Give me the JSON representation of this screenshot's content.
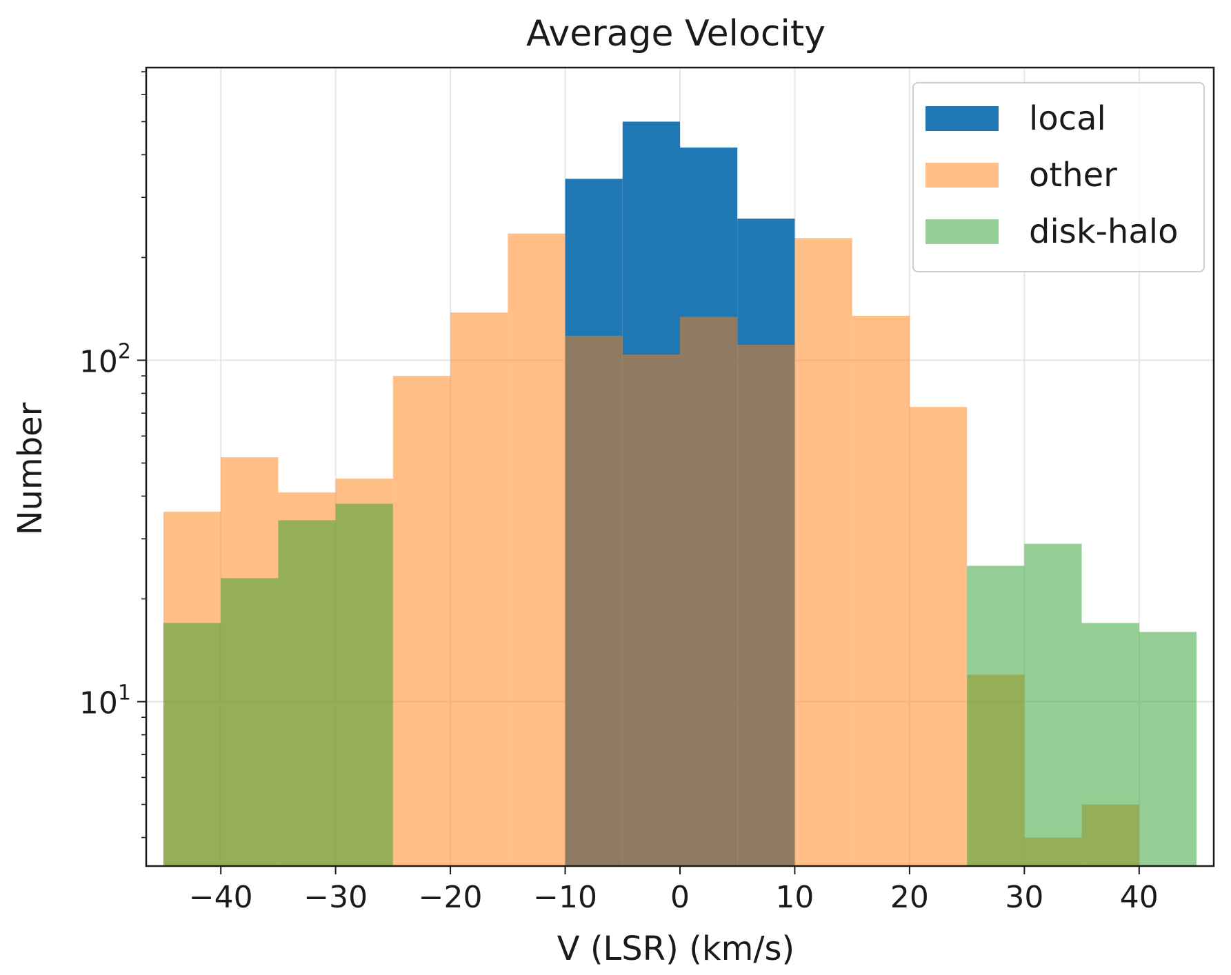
{
  "chart_data": {
    "type": "bar",
    "title": "Average Velocity",
    "xlabel": "V (LSR) (km/s)",
    "ylabel": "Number",
    "yscale": "log",
    "xlim": [
      -46.5,
      46.5
    ],
    "ylim": [
      3.3,
      720
    ],
    "grid": true,
    "legend_position": "top-right",
    "bin_width": 5,
    "x_ticks": [
      -40,
      -30,
      -20,
      -10,
      0,
      10,
      20,
      30,
      40
    ],
    "x_tick_labels": [
      "−40",
      "−30",
      "−20",
      "−10",
      "0",
      "10",
      "20",
      "30",
      "40"
    ],
    "y_major_ticks": [
      10,
      100
    ],
    "y_tick_labels": [
      {
        "base": "10",
        "exp": "1"
      },
      {
        "base": "10",
        "exp": "2"
      }
    ],
    "series": [
      {
        "name": "local",
        "color": "#1f77b4",
        "opacity": 1.0,
        "bins": [
          {
            "left": -10,
            "value": 340
          },
          {
            "left": -5,
            "value": 500
          },
          {
            "left": 0,
            "value": 420
          },
          {
            "left": 5,
            "value": 260
          }
        ]
      },
      {
        "name": "other",
        "color": "#ff7f0e",
        "opacity": 0.5,
        "bins": [
          {
            "left": -45,
            "value": 36
          },
          {
            "left": -40,
            "value": 52
          },
          {
            "left": -35,
            "value": 41
          },
          {
            "left": -30,
            "value": 45
          },
          {
            "left": -25,
            "value": 90
          },
          {
            "left": -20,
            "value": 138
          },
          {
            "left": -15,
            "value": 235
          },
          {
            "left": -10,
            "value": 118
          },
          {
            "left": -5,
            "value": 104
          },
          {
            "left": 0,
            "value": 134
          },
          {
            "left": 5,
            "value": 111
          },
          {
            "left": 10,
            "value": 228
          },
          {
            "left": 15,
            "value": 135
          },
          {
            "left": 20,
            "value": 73
          },
          {
            "left": 25,
            "value": 12
          },
          {
            "left": 30,
            "value": 4
          },
          {
            "left": 35,
            "value": 5
          }
        ]
      },
      {
        "name": "disk-halo",
        "color": "#2ca02c",
        "opacity": 0.5,
        "bins": [
          {
            "left": -45,
            "value": 17
          },
          {
            "left": -40,
            "value": 23
          },
          {
            "left": -35,
            "value": 34
          },
          {
            "left": -30,
            "value": 38
          },
          {
            "left": 25,
            "value": 25
          },
          {
            "left": 30,
            "value": 29
          },
          {
            "left": 35,
            "value": 17
          },
          {
            "left": 40,
            "value": 16
          }
        ]
      }
    ]
  }
}
